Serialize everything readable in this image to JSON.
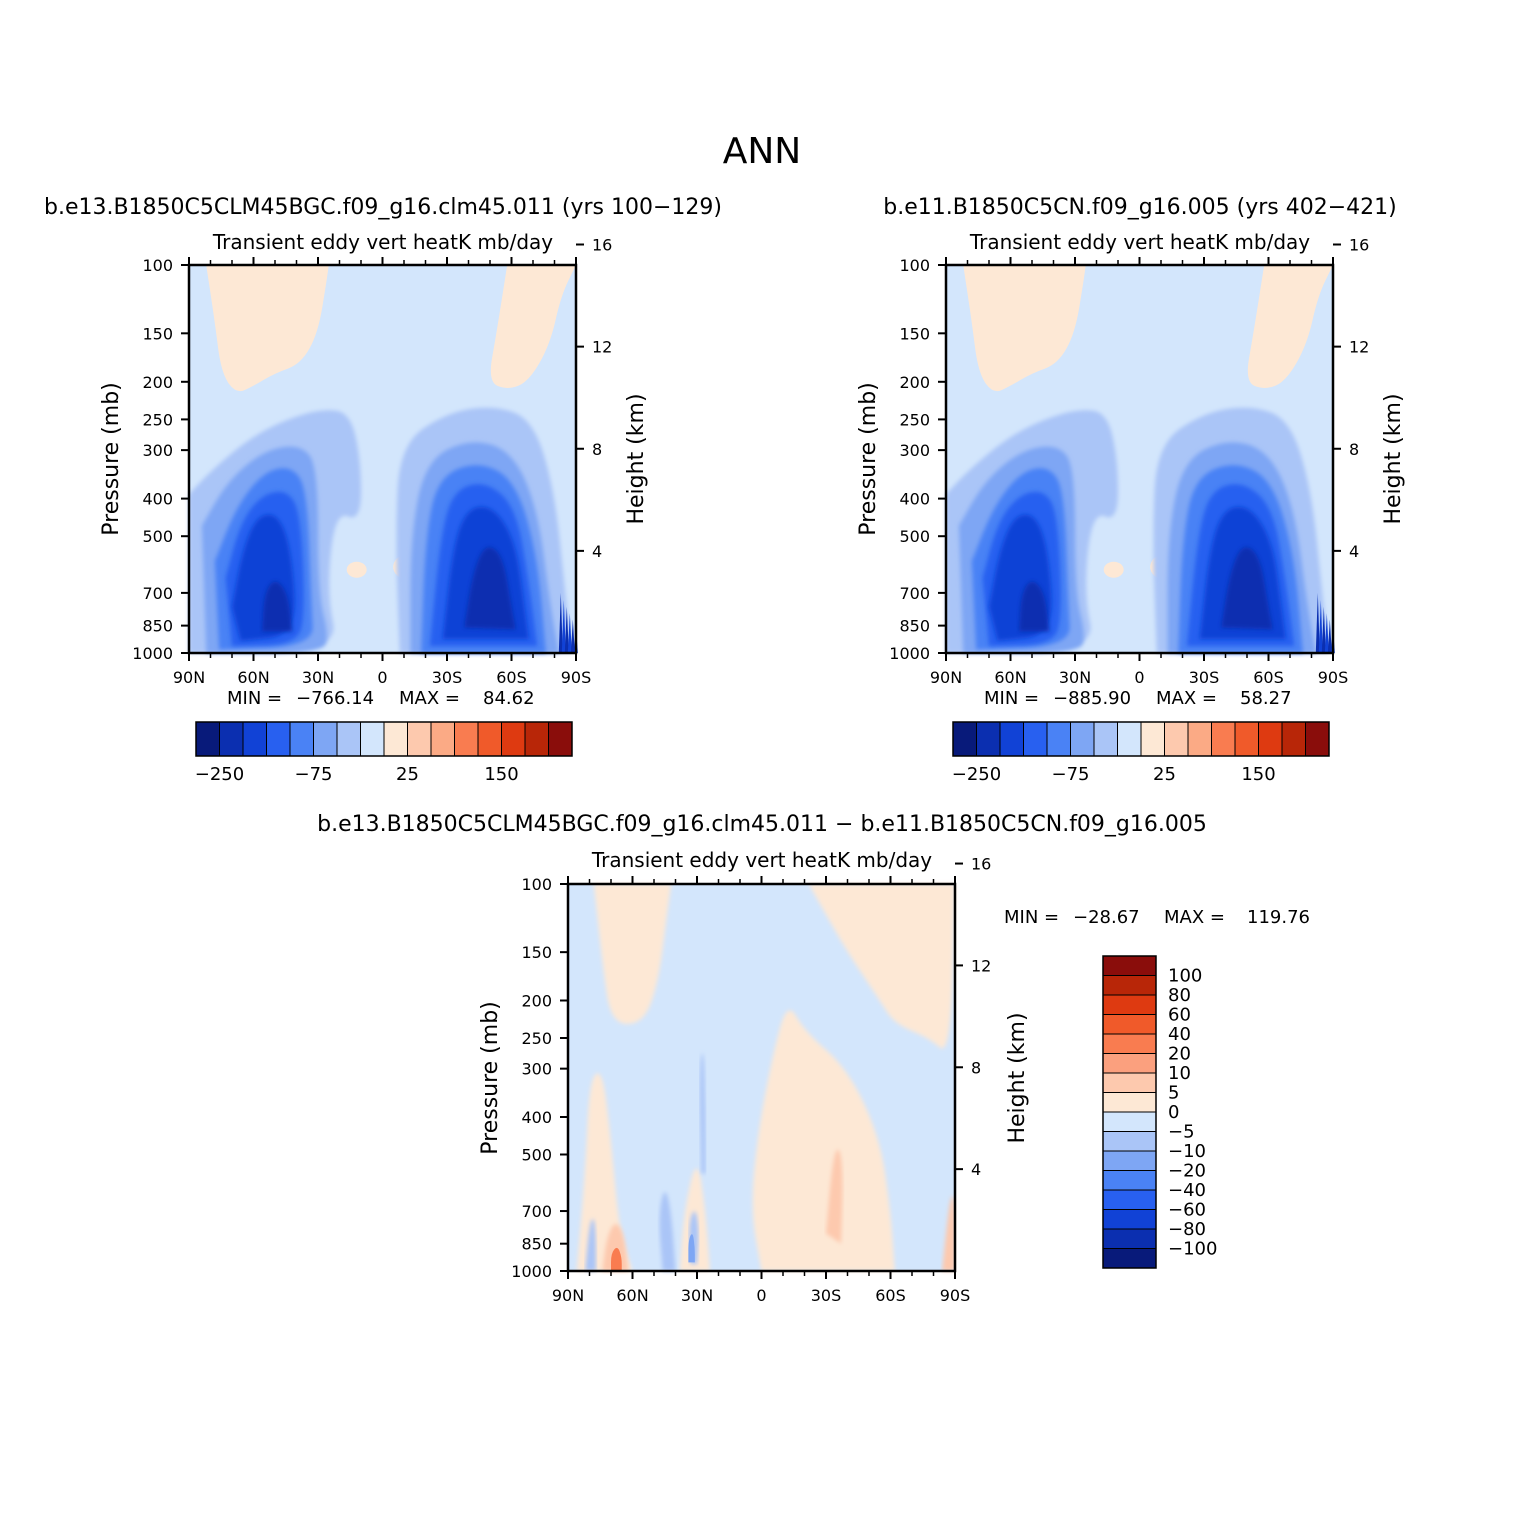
{
  "page_title": "ANN",
  "colors": {
    "main_scale": [
      "#081a7a",
      "#0b2fb0",
      "#1142d6",
      "#2860f0",
      "#4a82f5",
      "#7ea6f4",
      "#aac5f7",
      "#d3e6fc",
      "#fde8d5",
      "#fdc9ae",
      "#fbaa85",
      "#f97c50",
      "#f05a2a",
      "#de3a11",
      "#b82608",
      "#8a0d0b"
    ],
    "diff_scale": [
      "#081a7a",
      "#0b2fb0",
      "#1142d6",
      "#2860f0",
      "#4a82f5",
      "#7ea6f4",
      "#aac5f7",
      "#d3e6fc",
      "#fde8d5",
      "#fdc9ae",
      "#fba07e",
      "#f97c50",
      "#f05a2a",
      "#de3a11",
      "#b82608",
      "#8a0d0b"
    ]
  },
  "chart_data": [
    {
      "type": "heatmap",
      "title": "b.e13.B1850C5CLM45BGC.f09_g16.clm45.011 (yrs 100-129)",
      "subtitle": "Transient eddy vert heatK mb/day",
      "ylabel": "Pressure (mb)",
      "ylabel_right": "Height (km)",
      "x_ticks": [
        "90N",
        "60N",
        "30N",
        "0",
        "30S",
        "60S",
        "90S"
      ],
      "y_ticks": [
        "100",
        "150",
        "200",
        "250",
        "300",
        "400",
        "500",
        "700",
        "850",
        "1000"
      ],
      "y2_ticks": [
        "16",
        "12",
        "8",
        "4"
      ],
      "stats": {
        "min_label": "MIN =",
        "min": "-766.14",
        "max_label": "MAX =",
        "max": "84.62"
      },
      "colorbar_ticks": [
        "-250",
        "-75",
        "25",
        "150"
      ],
      "features": [
        {
          "type": "cool",
          "lat_range": [
            -62,
            -20
          ],
          "p_range": [
            300,
            1000
          ],
          "peak": -766.14
        },
        {
          "type": "cool",
          "lat_range": [
            25,
            75
          ],
          "p_range": [
            300,
            1000
          ],
          "peak": -600
        }
      ]
    },
    {
      "type": "heatmap",
      "title": "b.e11.B1850C5CN.f09_g16.005 (yrs 402-421)",
      "subtitle": "Transient eddy vert heatK mb/day",
      "ylabel": "Pressure (mb)",
      "ylabel_right": "Height (km)",
      "x_ticks": [
        "90N",
        "60N",
        "30N",
        "0",
        "30S",
        "60S",
        "90S"
      ],
      "y_ticks": [
        "100",
        "150",
        "200",
        "250",
        "300",
        "400",
        "500",
        "700",
        "850",
        "1000"
      ],
      "y2_ticks": [
        "16",
        "12",
        "8",
        "4"
      ],
      "stats": {
        "min_label": "MIN =",
        "min": "-885.90",
        "max_label": "MAX =",
        "max": "58.27"
      },
      "colorbar_ticks": [
        "-250",
        "-75",
        "25",
        "150"
      ],
      "features": [
        {
          "type": "cool",
          "lat_range": [
            -62,
            -20
          ],
          "p_range": [
            300,
            1000
          ],
          "peak": -885.9
        },
        {
          "type": "cool",
          "lat_range": [
            25,
            75
          ],
          "p_range": [
            300,
            1000
          ],
          "peak": -650
        }
      ]
    },
    {
      "type": "heatmap",
      "title": "b.e13.B1850C5CLM45BGC.f09_g16.clm45.011 - b.e11.B1850C5CN.f09_g16.005",
      "subtitle": "Transient eddy vert heatK mb/day",
      "ylabel": "Pressure (mb)",
      "ylabel_right": "Height (km)",
      "x_ticks": [
        "90N",
        "60N",
        "30N",
        "0",
        "30S",
        "60S",
        "90S"
      ],
      "y_ticks": [
        "100",
        "150",
        "200",
        "250",
        "300",
        "400",
        "500",
        "700",
        "850",
        "1000"
      ],
      "y2_ticks": [
        "16",
        "12",
        "8",
        "4"
      ],
      "stats": {
        "min_label": "MIN =",
        "min": "-28.67",
        "max_label": "MAX =",
        "max": "119.76"
      },
      "colorbar_ticks": [
        "100",
        "80",
        "60",
        "40",
        "20",
        "10",
        "5",
        "0",
        "-5",
        "-10",
        "-20",
        "-40",
        "-60",
        "-80",
        "-100"
      ]
    }
  ]
}
